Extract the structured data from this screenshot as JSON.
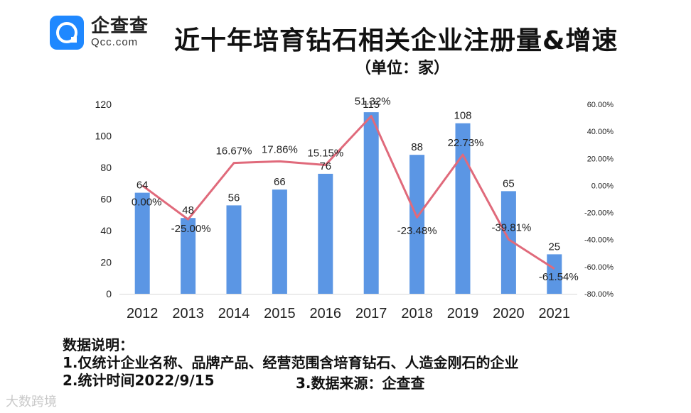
{
  "brand": {
    "name_cn": "企查查",
    "name_en": "Qcc.com"
  },
  "title": "近十年培育钻石相关企业注册量&增速",
  "subtitle": "（单位：家）",
  "notes": {
    "heading": "数据说明：",
    "line1": "1.仅统计企业名称、品牌产品、经营范围含培育钻石、人造金刚石的企业",
    "line2": "2.统计时间2022/9/15",
    "source": "3.数据来源：企查查"
  },
  "watermark": "大数跨境",
  "colors": {
    "bar": "#5b96e4",
    "line": "#e06a7b"
  },
  "chart_data": {
    "type": "bar+line",
    "categories": [
      "2012",
      "2013",
      "2014",
      "2015",
      "2016",
      "2017",
      "2018",
      "2019",
      "2020",
      "2021"
    ],
    "series": [
      {
        "name": "注册量",
        "type": "bar",
        "axis": "left",
        "values": [
          64,
          48,
          56,
          66,
          76,
          115,
          88,
          108,
          65,
          25
        ]
      },
      {
        "name": "增速",
        "type": "line",
        "axis": "right",
        "values": [
          0.0,
          -25.0,
          16.67,
          17.86,
          15.15,
          51.32,
          -23.48,
          22.73,
          -39.81,
          -61.54
        ],
        "labels": [
          "0.00%",
          "-25.00%",
          "16.67%",
          "17.86%",
          "15.15%",
          "51.32%",
          "-23.48%",
          "22.73%",
          "-39.81%",
          "-61.54%"
        ]
      }
    ],
    "ylim_left": [
      0,
      120
    ],
    "yticks_left": [
      "0",
      "20",
      "40",
      "60",
      "80",
      "100",
      "120"
    ],
    "ylim_right": [
      -80,
      60
    ],
    "yticks_right": [
      "-80.00%",
      "-60.00%",
      "-40.00%",
      "-20.00%",
      "0.00%",
      "20.00%",
      "40.00%",
      "60.00%"
    ],
    "grid": false
  }
}
